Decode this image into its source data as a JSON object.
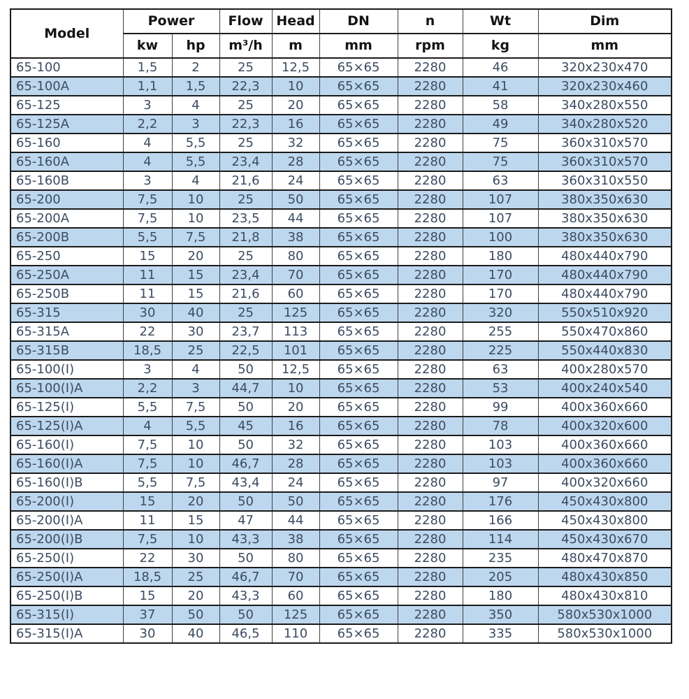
{
  "colors": {
    "row_alt_background": "#bdd7ee",
    "row_background": "#ffffff",
    "data_text": "#3d4c61",
    "header_text": "#141414",
    "border": "#1b1b1b"
  },
  "chart_data": {
    "type": "table",
    "header": {
      "model": "Model",
      "power": "Power",
      "flow": "Flow",
      "head": "Head",
      "dn": "DN",
      "n": "n",
      "wt": "Wt",
      "dim": "Dim",
      "units": {
        "kw": "kw",
        "hp": "hp",
        "flow": "m³/h",
        "head": "m",
        "dn": "mm",
        "n": "rpm",
        "wt": "kg",
        "dim": "mm"
      }
    },
    "rows": [
      [
        "65-100",
        "1,5",
        "2",
        "25",
        "12,5",
        "65×65",
        "2280",
        "46",
        "320x230x470"
      ],
      [
        "65-100A",
        "1,1",
        "1,5",
        "22,3",
        "10",
        "65×65",
        "2280",
        "41",
        "320x230x460"
      ],
      [
        "65-125",
        "3",
        "4",
        "25",
        "20",
        "65×65",
        "2280",
        "58",
        "340x280x550"
      ],
      [
        "65-125A",
        "2,2",
        "3",
        "22,3",
        "16",
        "65×65",
        "2280",
        "49",
        "340x280x520"
      ],
      [
        "65-160",
        "4",
        "5,5",
        "25",
        "32",
        "65×65",
        "2280",
        "75",
        "360x310x570"
      ],
      [
        "65-160A",
        "4",
        "5,5",
        "23,4",
        "28",
        "65×65",
        "2280",
        "75",
        "360x310x570"
      ],
      [
        "65-160B",
        "3",
        "4",
        "21,6",
        "24",
        "65×65",
        "2280",
        "63",
        "360x310x550"
      ],
      [
        "65-200",
        "7,5",
        "10",
        "25",
        "50",
        "65×65",
        "2280",
        "107",
        "380x350x630"
      ],
      [
        "65-200A",
        "7,5",
        "10",
        "23,5",
        "44",
        "65×65",
        "2280",
        "107",
        "380x350x630"
      ],
      [
        "65-200B",
        "5,5",
        "7,5",
        "21,8",
        "38",
        "65×65",
        "2280",
        "100",
        "380x350x630"
      ],
      [
        "65-250",
        "15",
        "20",
        "25",
        "80",
        "65×65",
        "2280",
        "180",
        "480x440x790"
      ],
      [
        "65-250A",
        "11",
        "15",
        "23,4",
        "70",
        "65×65",
        "2280",
        "170",
        "480x440x790"
      ],
      [
        "65-250B",
        "11",
        "15",
        "21,6",
        "60",
        "65×65",
        "2280",
        "170",
        "480x440x790"
      ],
      [
        "65-315",
        "30",
        "40",
        "25",
        "125",
        "65×65",
        "2280",
        "320",
        "550x510x920"
      ],
      [
        "65-315A",
        "22",
        "30",
        "23,7",
        "113",
        "65×65",
        "2280",
        "255",
        "550x470x860"
      ],
      [
        "65-315B",
        "18,5",
        "25",
        "22,5",
        "101",
        "65×65",
        "2280",
        "225",
        "550x440x830"
      ],
      [
        "65-100(I)",
        "3",
        "4",
        "50",
        "12,5",
        "65×65",
        "2280",
        "63",
        "400x280x570"
      ],
      [
        "65-100(I)A",
        "2,2",
        "3",
        "44,7",
        "10",
        "65×65",
        "2280",
        "53",
        "400x240x540"
      ],
      [
        "65-125(I)",
        "5,5",
        "7,5",
        "50",
        "20",
        "65×65",
        "2280",
        "99",
        "400x360x660"
      ],
      [
        "65-125(I)A",
        "4",
        "5,5",
        "45",
        "16",
        "65×65",
        "2280",
        "78",
        "400x320x600"
      ],
      [
        "65-160(I)",
        "7,5",
        "10",
        "50",
        "32",
        "65×65",
        "2280",
        "103",
        "400x360x660"
      ],
      [
        "65-160(I)A",
        "7,5",
        "10",
        "46,7",
        "28",
        "65×65",
        "2280",
        "103",
        "400x360x660"
      ],
      [
        "65-160(I)B",
        "5,5",
        "7,5",
        "43,4",
        "24",
        "65×65",
        "2280",
        "97",
        "400x320x660"
      ],
      [
        "65-200(I)",
        "15",
        "20",
        "50",
        "50",
        "65×65",
        "2280",
        "176",
        "450x430x800"
      ],
      [
        "65-200(I)A",
        "11",
        "15",
        "47",
        "44",
        "65×65",
        "2280",
        "166",
        "450x430x800"
      ],
      [
        "65-200(I)B",
        "7,5",
        "10",
        "43,3",
        "38",
        "65×65",
        "2280",
        "114",
        "450x430x670"
      ],
      [
        "65-250(I)",
        "22",
        "30",
        "50",
        "80",
        "65×65",
        "2280",
        "235",
        "480x470x870"
      ],
      [
        "65-250(I)A",
        "18,5",
        "25",
        "46,7",
        "70",
        "65×65",
        "2280",
        "205",
        "480x430x850"
      ],
      [
        "65-250(I)B",
        "15",
        "20",
        "43,3",
        "60",
        "65×65",
        "2280",
        "180",
        "480x430x810"
      ],
      [
        "65-315(I)",
        "37",
        "50",
        "50",
        "125",
        "65×65",
        "2280",
        "350",
        "580x530x1000"
      ],
      [
        "65-315(I)A",
        "30",
        "40",
        "46,5",
        "110",
        "65×65",
        "2280",
        "335",
        "580x530x1000"
      ]
    ]
  }
}
